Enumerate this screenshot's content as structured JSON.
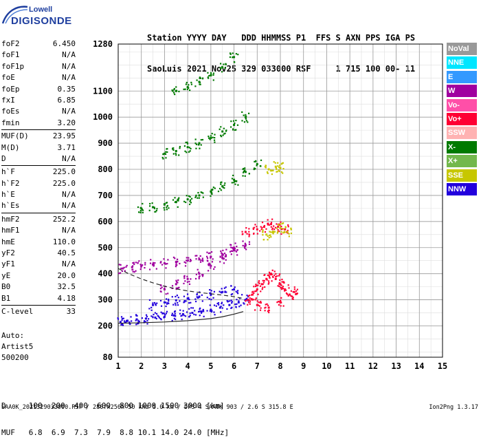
{
  "logo": {
    "line1": "Lowell",
    "line2": "DIGISONDE"
  },
  "header": {
    "line1": "Station YYYY DAY   DDD HHMMSS P1  FFS S AXN PPS IGA PS",
    "line2": "SaoLuis 2021 Nov25 329 033000 RSF     1 715 100 00- 11"
  },
  "params_group1": [
    {
      "name": "foF2",
      "value": "6.450"
    },
    {
      "name": "foF1",
      "value": "N/A"
    },
    {
      "name": "foF1p",
      "value": "N/A"
    },
    {
      "name": "foE",
      "value": "N/A"
    },
    {
      "name": "foEp",
      "value": "0.35"
    },
    {
      "name": "fxI",
      "value": "6.85"
    },
    {
      "name": "foEs",
      "value": "N/A"
    },
    {
      "name": "fmin",
      "value": "3.20"
    }
  ],
  "params_group2": [
    {
      "name": "MUF(D)",
      "value": "23.95"
    },
    {
      "name": "M(D)",
      "value": "3.71"
    },
    {
      "name": "D",
      "value": "N/A"
    }
  ],
  "params_group3": [
    {
      "name": "h`F",
      "value": "225.0"
    },
    {
      "name": "h`F2",
      "value": "225.0"
    },
    {
      "name": "h`E",
      "value": "N/A"
    },
    {
      "name": "h`Es",
      "value": "N/A"
    }
  ],
  "params_group4": [
    {
      "name": "hmF2",
      "value": "252.2"
    },
    {
      "name": "hmF1",
      "value": "N/A"
    },
    {
      "name": "hmE",
      "value": "110.0"
    },
    {
      "name": "yF2",
      "value": "40.5"
    },
    {
      "name": "yF1",
      "value": "N/A"
    },
    {
      "name": "yE",
      "value": "20.0"
    },
    {
      "name": "B0",
      "value": "32.5"
    },
    {
      "name": "B1",
      "value": "4.18"
    }
  ],
  "params_group5": [
    {
      "name": "C-level",
      "value": "33"
    }
  ],
  "auto": {
    "line1": "Auto:",
    "line2": "Artist5",
    "line3": "500200"
  },
  "legend": [
    {
      "label": "NoVal",
      "color": "#999999"
    },
    {
      "label": "NNE",
      "color": "#00e6ff"
    },
    {
      "label": "E",
      "color": "#3399ff"
    },
    {
      "label": "W",
      "color": "#a0009f"
    },
    {
      "label": "Vo-",
      "color": "#ff4fa8"
    },
    {
      "label": "Vo+",
      "color": "#ff0033"
    },
    {
      "label": "SSW",
      "color": "#ffb2b2"
    },
    {
      "label": "X-",
      "color": "#007a00"
    },
    {
      "label": "X+",
      "color": "#73b84d"
    },
    {
      "label": "SSE",
      "color": "#c7c700"
    },
    {
      "label": "NNW",
      "color": "#2200dd"
    }
  ],
  "dtable": {
    "row1": "D     100  200  400  600  800 1000 1500 3000 [km]",
    "row2": "MUF   6.8  6.9  7.3  7.9  8.8 10.1 14.0 24.0 [MHz]"
  },
  "footer": {
    "left": "SAA0K_2021329033000.RSF / 280fx256h 50 kHz 5.0 km / DPS-4 SAA0K 903 / 2.6 S 315.8 E",
    "right": "Ion2Png 1.3.17"
  },
  "chart_data": {
    "type": "scatter",
    "x_ticks": [
      1,
      2,
      3,
      4,
      5,
      6,
      7,
      8,
      9,
      10,
      11,
      12,
      13,
      14,
      15
    ],
    "y_ticks": [
      80,
      200,
      300,
      400,
      500,
      600,
      700,
      800,
      900,
      1000,
      1100,
      1280
    ],
    "xlim": [
      1,
      15
    ],
    "ylim": [
      80,
      1280
    ],
    "grid": true,
    "series": [
      {
        "color": "#2200dd",
        "x": [
          1.1,
          1.4,
          1.8,
          2.2,
          2.6,
          3.0,
          3.4,
          3.8,
          4.2,
          4.6,
          5.0,
          5.4,
          5.8,
          6.2,
          6.5
        ],
        "y": [
          215,
          220,
          225,
          228,
          232,
          235,
          240,
          245,
          250,
          255,
          262,
          270,
          280,
          290,
          300
        ]
      },
      {
        "color": "#2200dd",
        "x": [
          2.5,
          3.0,
          3.5,
          4.0,
          4.5,
          5.0,
          5.5,
          6.0
        ],
        "y": [
          280,
          290,
          298,
          305,
          312,
          320,
          330,
          340
        ]
      },
      {
        "color": "#ff0033",
        "x": [
          6.6,
          6.8,
          7.0,
          7.2,
          7.4,
          7.6,
          7.8,
          8.0,
          8.2,
          8.4,
          8.6,
          7.0,
          7.5,
          8.0
        ],
        "y": [
          300,
          320,
          340,
          360,
          380,
          400,
          380,
          360,
          340,
          320,
          330,
          280,
          270,
          290
        ]
      },
      {
        "color": "#a0009f",
        "x": [
          3.0,
          3.5,
          4.0,
          4.5,
          5.0,
          5.5,
          6.0
        ],
        "y": [
          340,
          360,
          380,
          400,
          430,
          460,
          500
        ]
      },
      {
        "color": "#a0009f",
        "x": [
          1.2,
          1.6,
          2.0,
          2.5,
          3.0,
          3.5,
          4.0,
          4.5,
          5.0,
          5.5,
          6.0,
          6.5
        ],
        "y": [
          420,
          425,
          430,
          435,
          440,
          445,
          450,
          455,
          465,
          475,
          490,
          510
        ]
      },
      {
        "color": "#ff0033",
        "x": [
          6.5,
          7.0,
          7.3,
          7.6,
          7.9,
          8.2
        ],
        "y": [
          560,
          570,
          580,
          590,
          580,
          570
        ]
      },
      {
        "color": "#c7c700",
        "x": [
          7.4,
          7.7,
          8.0,
          8.3
        ],
        "y": [
          550,
          560,
          575,
          560
        ]
      },
      {
        "color": "#007a00",
        "x": [
          2.0,
          2.5,
          3.0,
          3.5,
          4.0,
          4.5,
          5.0,
          5.5,
          6.0,
          6.5,
          7.0
        ],
        "y": [
          650,
          655,
          665,
          675,
          685,
          700,
          715,
          735,
          760,
          790,
          820
        ]
      },
      {
        "color": "#c7c700",
        "x": [
          7.5,
          7.8,
          8.0
        ],
        "y": [
          800,
          810,
          805
        ]
      },
      {
        "color": "#007a00",
        "x": [
          3.0,
          3.5,
          4.0,
          4.5,
          5.0,
          5.5,
          6.0,
          6.5
        ],
        "y": [
          860,
          870,
          885,
          900,
          920,
          945,
          970,
          1000
        ]
      },
      {
        "color": "#007a00",
        "x": [
          3.5,
          4.0,
          4.5,
          5.0,
          5.5,
          6.0
        ],
        "y": [
          1100,
          1115,
          1135,
          1160,
          1190,
          1230
        ]
      }
    ],
    "annotations": [
      {
        "type": "curve",
        "style": "solid",
        "x": [
          1.0,
          2.0,
          3.0,
          4.0,
          5.0,
          5.5,
          6.0,
          6.4
        ],
        "y": [
          210,
          212,
          215,
          220,
          228,
          235,
          245,
          255
        ]
      },
      {
        "type": "curve",
        "style": "dashed",
        "x": [
          1.0,
          1.5,
          2.0,
          2.5,
          3.0,
          3.5,
          4.0,
          4.5,
          5.0,
          5.5,
          6.0,
          6.4
        ],
        "y": [
          420,
          398,
          380,
          365,
          352,
          342,
          334,
          328,
          323,
          318,
          312,
          305
        ]
      }
    ]
  }
}
